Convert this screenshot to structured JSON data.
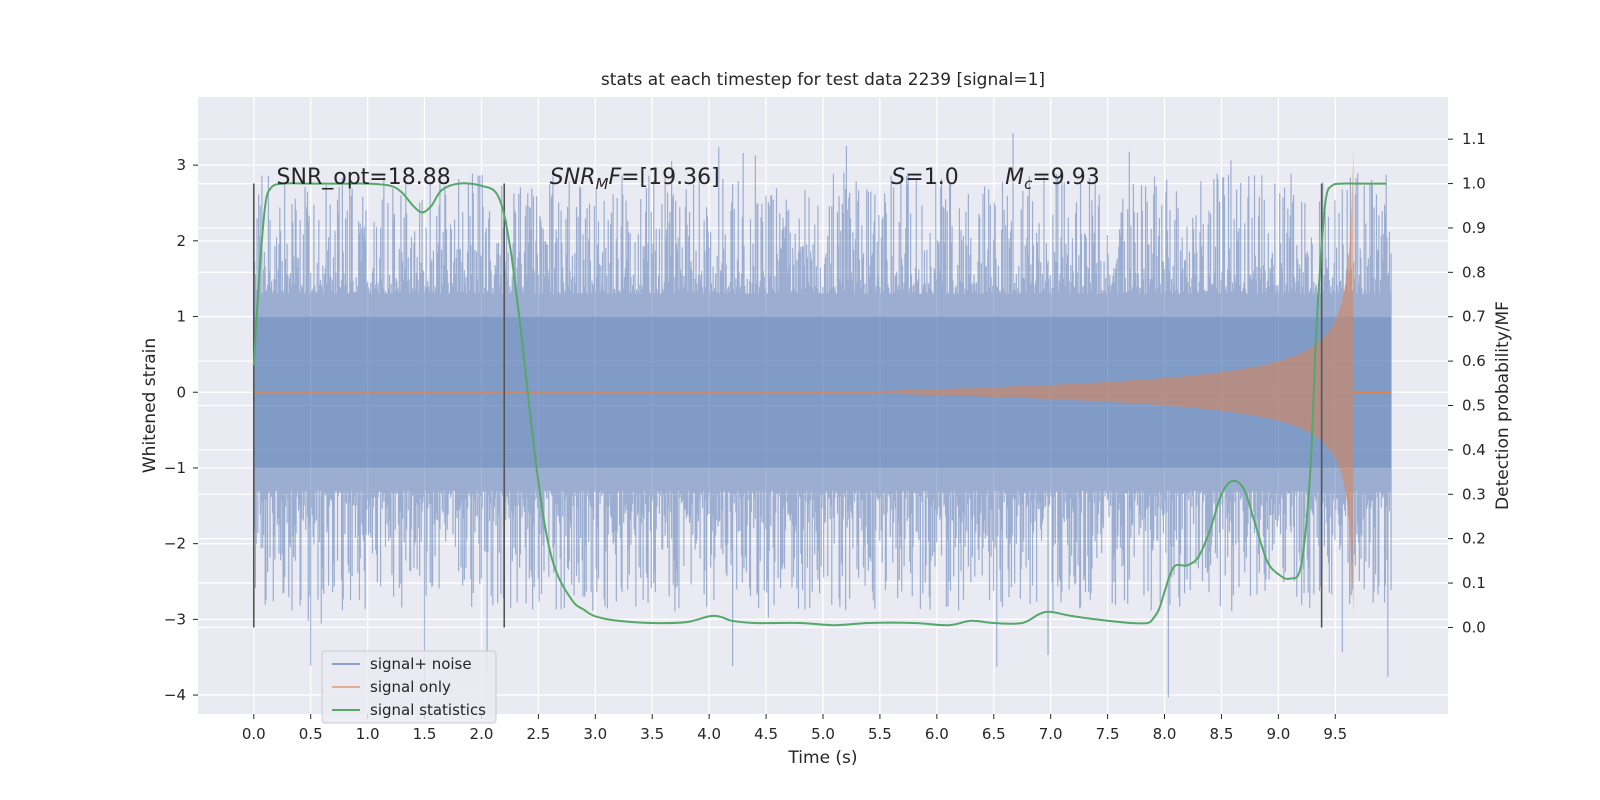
{
  "chart_data": {
    "type": "line",
    "title": "stats at each timestep for test data 2239 [signal=1]",
    "xlabel": "Time (s)",
    "ylabel": "Whitened strain",
    "y2label": "Detection probability/MF",
    "xlim": [
      -0.49,
      10.49
    ],
    "ylim": [
      -4.25,
      3.9
    ],
    "y2lim": [
      -0.195,
      1.195
    ],
    "x_ticks": [
      "0.0",
      "0.5",
      "1.0",
      "1.5",
      "2.0",
      "2.5",
      "3.0",
      "3.5",
      "4.0",
      "4.5",
      "5.0",
      "5.5",
      "6.0",
      "6.5",
      "7.0",
      "7.5",
      "8.0",
      "8.5",
      "9.0",
      "9.5"
    ],
    "y_ticks": [
      "3",
      "2",
      "1",
      "0",
      "−1",
      "−2",
      "−3",
      "−4"
    ],
    "y2_ticks": [
      "0.0",
      "0.1",
      "0.2",
      "0.3",
      "0.4",
      "0.5",
      "0.6",
      "0.7",
      "0.8",
      "0.9",
      "1.0",
      "1.1"
    ],
    "grid": true,
    "legend_placement": "lower-left",
    "colors": {
      "signal_noise": "#4c72b0",
      "signal_only": "#dd8452",
      "signal_statistics": "#55a868",
      "markers": "#555555",
      "background": "#eaeaf2"
    },
    "annotations": [
      {
        "text": "SNR_opt=18.88",
        "x": 0.2,
        "y": 2.75
      },
      {
        "text": "SNR",
        "sub": "M",
        "rest": "F=[19.36]",
        "x": 2.6,
        "y": 2.75
      },
      {
        "text": "S",
        "rest": "=1.0",
        "x": 5.6,
        "y": 2.75
      },
      {
        "text": "M",
        "sub": "c",
        "rest": "=9.93",
        "x": 6.6,
        "y": 2.75
      }
    ],
    "vertical_markers": [
      0.0,
      2.2,
      9.38
    ],
    "series": [
      {
        "name": "signal+ noise",
        "axis": "left",
        "envelope": {
          "t_end": 9.99,
          "core_amplitude": 1.0,
          "typical_peak": 2.3,
          "max": 3.55,
          "min": -4.05
        }
      },
      {
        "name": "signal only",
        "axis": "left",
        "chirp": {
          "t_start": 5.5,
          "t_merger": 9.66,
          "peak_amplitude": 3.2
        }
      },
      {
        "name": "signal statistics",
        "axis": "right",
        "x": [
          0.0,
          0.05,
          0.1,
          0.15,
          0.25,
          0.5,
          0.8,
          1.0,
          1.2,
          1.3,
          1.4,
          1.48,
          1.56,
          1.65,
          1.8,
          2.0,
          2.15,
          2.25,
          2.35,
          2.45,
          2.55,
          2.65,
          2.8,
          2.9,
          3.0,
          3.2,
          3.5,
          3.8,
          4.0,
          4.1,
          4.2,
          4.4,
          4.8,
          5.1,
          5.4,
          5.8,
          6.1,
          6.3,
          6.5,
          6.75,
          6.9,
          7.0,
          7.2,
          7.5,
          7.7,
          7.85,
          7.9,
          7.95,
          8.0,
          8.05,
          8.1,
          8.2,
          8.3,
          8.4,
          8.5,
          8.6,
          8.7,
          8.8,
          8.9,
          9.0,
          9.1,
          9.2,
          9.28,
          9.33,
          9.38,
          9.42,
          9.47,
          9.55,
          9.7,
          9.9,
          9.95
        ],
        "y": [
          0.59,
          0.8,
          0.95,
          0.99,
          1.0,
          1.0,
          1.0,
          1.0,
          0.995,
          0.98,
          0.95,
          0.935,
          0.95,
          0.985,
          1.0,
          0.995,
          0.97,
          0.86,
          0.66,
          0.43,
          0.24,
          0.13,
          0.06,
          0.04,
          0.025,
          0.015,
          0.01,
          0.012,
          0.025,
          0.024,
          0.015,
          0.01,
          0.01,
          0.005,
          0.01,
          0.01,
          0.005,
          0.015,
          0.01,
          0.01,
          0.03,
          0.035,
          0.025,
          0.015,
          0.01,
          0.01,
          0.02,
          0.04,
          0.08,
          0.12,
          0.14,
          0.14,
          0.16,
          0.22,
          0.3,
          0.33,
          0.31,
          0.23,
          0.15,
          0.12,
          0.11,
          0.14,
          0.35,
          0.65,
          0.86,
          0.97,
          0.995,
          1.0,
          1.0,
          1.0,
          1.0
        ]
      }
    ]
  }
}
